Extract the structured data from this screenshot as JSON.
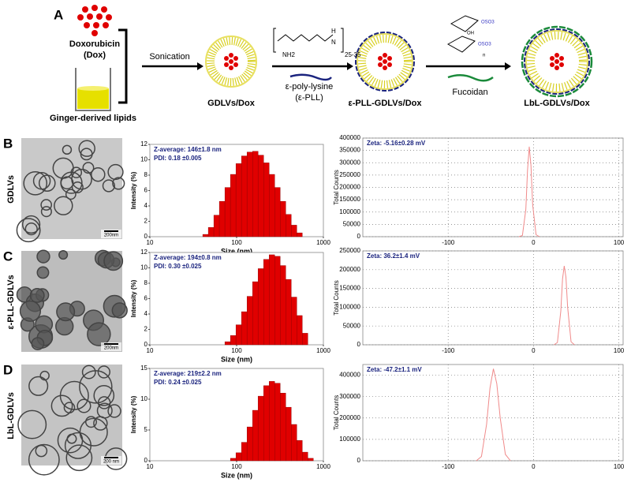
{
  "scheme": {
    "label": "A",
    "dox": [
      "Doxorubicin",
      "(Dox)"
    ],
    "lipids": "Ginger-derived lipids",
    "sonication": "Sonication",
    "products": [
      "GDLVs/Dox",
      "ε-PLL-GDLVs/Dox",
      "LbL-GDLVs/Dox"
    ],
    "pll": [
      "ε-poly-lysine",
      "(ε-PLL)"
    ],
    "pll_subscript": "25-35",
    "fucoidan": "Fucoidan",
    "chem": [
      "NH2",
      "N",
      "H",
      "OSO3",
      "OSO3",
      "OH",
      "n"
    ]
  },
  "panels": [
    {
      "label": "B",
      "sample": "GDLVs",
      "scale_bar": "200nm"
    },
    {
      "label": "C",
      "sample": "ε-PLL-GDLVs",
      "scale_bar": "200nm"
    },
    {
      "label": "D",
      "sample": "LbL-GDLVs",
      "scale_bar": "200 nm"
    }
  ],
  "chart_data": [
    {
      "type": "bar",
      "xscale": "log",
      "x_label": "Size (nm)",
      "y_label": "Intensity (%)",
      "color": "#e00000",
      "grid": false,
      "annotations": [
        "Z-average: 146±1.8 nm",
        "PDI: 0.18 ±0.005"
      ],
      "x": [
        43.82,
        50.75,
        58.77,
        68.06,
        78.82,
        91.28,
        105.7,
        122.4,
        141.8,
        164.2,
        190.1,
        220.2,
        255.0,
        295.3,
        342.0,
        396.1,
        458.7,
        531.2
      ],
      "values": [
        0.3,
        1.2,
        2.8,
        4.6,
        6.4,
        8.1,
        9.5,
        10.5,
        11.0,
        11.1,
        10.6,
        9.6,
        8.1,
        6.4,
        4.6,
        2.9,
        1.5,
        0.5
      ],
      "xlim": [
        10,
        1000
      ],
      "xticks": [
        10,
        100,
        1000
      ],
      "ylim": [
        0,
        12
      ],
      "yticks": [
        0,
        2,
        4,
        6,
        8,
        10,
        12
      ]
    },
    {
      "type": "line",
      "x_label": null,
      "y_label": "Total Counts",
      "color": "#f08a8a",
      "grid": true,
      "annotations": [
        "Zeta: -5.16±0.28 mV"
      ],
      "x": [
        -17,
        -13,
        -9,
        -7,
        -5,
        -3,
        -1,
        3,
        7
      ],
      "values": [
        0,
        5000,
        110000,
        270000,
        365000,
        290000,
        130000,
        8000,
        0
      ],
      "xlim": [
        -200,
        105
      ],
      "xticks": [
        -100,
        0,
        100
      ],
      "ylim": [
        0,
        400000
      ],
      "yticks": [
        0,
        50000,
        100000,
        150000,
        200000,
        250000,
        300000,
        350000,
        400000
      ]
    },
    {
      "type": "bar",
      "xscale": "log",
      "x_label": "Size (nm)",
      "y_label": "Intensity (%)",
      "color": "#e00000",
      "grid": false,
      "annotations": [
        "Z-average: 194±0.8 nm",
        "PDI: 0.30 ±0.025"
      ],
      "x": [
        78.82,
        91.28,
        105.7,
        122.4,
        141.8,
        164.2,
        190.1,
        220.2,
        255.0,
        295.3,
        342.0,
        396.1,
        458.7,
        531.2,
        615.1
      ],
      "values": [
        0.4,
        1.2,
        2.6,
        4.3,
        6.3,
        8.2,
        9.9,
        11.1,
        11.7,
        11.5,
        10.3,
        8.5,
        6.2,
        3.8,
        1.5
      ],
      "xlim": [
        10,
        1000
      ],
      "xticks": [
        10,
        100,
        1000
      ],
      "ylim": [
        0,
        12
      ],
      "yticks": [
        0,
        2,
        4,
        6,
        8,
        10,
        12
      ]
    },
    {
      "type": "line",
      "x_label": null,
      "y_label": "Total Counts",
      "color": "#f08a8a",
      "grid": true,
      "annotations": [
        "Zeta: 36.2±1.4 mV"
      ],
      "x": [
        24,
        28,
        32,
        34,
        36,
        38,
        40,
        44,
        48
      ],
      "values": [
        0,
        6000,
        90000,
        175000,
        210000,
        180000,
        100000,
        8000,
        0
      ],
      "xlim": [
        -200,
        105
      ],
      "xticks": [
        -100,
        0,
        100
      ],
      "ylim": [
        0,
        250000
      ],
      "yticks": [
        0,
        50000,
        100000,
        150000,
        200000,
        250000
      ]
    },
    {
      "type": "bar",
      "xscale": "log",
      "x_label": "Size (nm)",
      "y_label": "Intensity (%)",
      "color": "#e00000",
      "grid": false,
      "annotations": [
        "Z-average: 219±2.2 nm",
        "PDI: 0.24 ±0.025"
      ],
      "x": [
        91.28,
        105.7,
        122.4,
        141.8,
        164.2,
        190.1,
        220.2,
        255.0,
        295.3,
        342.0,
        396.1,
        458.7,
        531.2,
        615.1,
        712.4
      ],
      "values": [
        0.4,
        1.3,
        3.0,
        5.5,
        8.2,
        10.5,
        12.2,
        12.9,
        12.6,
        11.0,
        8.7,
        5.9,
        3.3,
        1.4,
        0.4
      ],
      "xlim": [
        10,
        1000
      ],
      "xticks": [
        10,
        100,
        1000
      ],
      "ylim": [
        0,
        15
      ],
      "yticks": [
        0,
        5,
        10,
        15
      ]
    },
    {
      "type": "line",
      "x_label": null,
      "y_label": "Total Counts",
      "color": "#f08a8a",
      "grid": true,
      "annotations": [
        "Zeta: -47.2±1.1 mV"
      ],
      "x": [
        -67,
        -61,
        -55,
        -51,
        -47,
        -43,
        -39,
        -33,
        -27
      ],
      "values": [
        0,
        20000,
        170000,
        340000,
        430000,
        360000,
        200000,
        30000,
        0
      ],
      "xlim": [
        -200,
        105
      ],
      "xticks": [
        -100,
        0,
        100
      ],
      "ylim": [
        0,
        450000
      ],
      "yticks": [
        0,
        100000,
        200000,
        300000,
        400000
      ]
    }
  ]
}
